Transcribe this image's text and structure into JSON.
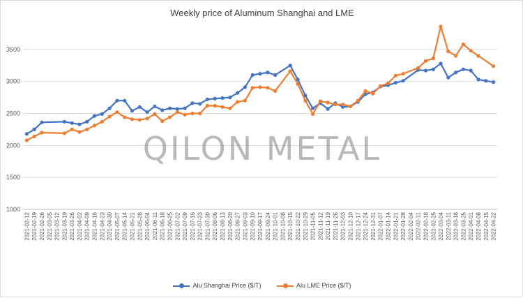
{
  "title": "Weekly price of Aluminum Shanghai and LME",
  "watermark": "QILON METAL",
  "colors": {
    "shanghai": "#4472c4",
    "lme": "#ed7d31",
    "grid": "#d9d9d9",
    "axis_text": "#595959"
  },
  "legend": [
    {
      "label": "Alu Shanghai Price ($/T)",
      "color": "#4472c4"
    },
    {
      "label": "Alu LME Price ($/T)",
      "color": "#ed7d31"
    }
  ],
  "chart_data": {
    "type": "line",
    "title": "Weekly price of Aluminum Shanghai and LME",
    "xlabel": "",
    "ylabel": "",
    "ylim": [
      1000,
      4000
    ],
    "yticks": [
      1000,
      1500,
      2000,
      2500,
      3000,
      3500
    ],
    "grid": "horizontal",
    "legend_position": "bottom",
    "categories": [
      "2021-02-12",
      "2021-02-19",
      "2021-02-26",
      "2021-03-05",
      "2021-03-12",
      "2021-03-19",
      "2021-03-26",
      "2021-04-02",
      "2021-04-09",
      "2021-04-16",
      "2021-04-23",
      "2021-04-30",
      "2021-05-07",
      "2021-05-14",
      "2021-05-21",
      "2021-05-28",
      "2021-06-04",
      "2021-06-11",
      "2021-06-18",
      "2021-06-25",
      "2021-07-02",
      "2021-07-09",
      "2021-07-16",
      "2021-07-23",
      "2021-07-30",
      "2021-08-06",
      "2021-08-13",
      "2021-08-20",
      "2021-08-27",
      "2021-09-03",
      "2021-09-10",
      "2021-09-17",
      "2021-09-24",
      "2021-10-01",
      "2021-10-08",
      "2021-10-15",
      "2021-10-22",
      "2021-10-29",
      "2021-11-05",
      "2021-11-12",
      "2021-11-19",
      "2021-11-26",
      "2021-12-03",
      "2021-12-10",
      "2021-12-17",
      "2021-12-24",
      "2021-12-31",
      "2022-01-07",
      "2022-01-14",
      "2022-01-21",
      "2022-01-28",
      "2022-02-04",
      "2022-02-11",
      "2022-02-18",
      "2022-02-25",
      "2022-03-04",
      "2022-03-11",
      "2022-03-18",
      "2022-03-25",
      "2022-04-01",
      "2022-04-08",
      "2022-04-15",
      "2022-04-22"
    ],
    "series": [
      {
        "name": "Alu Shanghai Price ($/T)",
        "values": [
          2180,
          2250,
          2360,
          null,
          null,
          2370,
          2350,
          2330,
          2370,
          2460,
          2490,
          2580,
          2700,
          2700,
          2540,
          2600,
          2520,
          2610,
          2550,
          2580,
          2570,
          2580,
          2660,
          2650,
          2720,
          2730,
          2740,
          2750,
          2820,
          2910,
          3100,
          3120,
          3140,
          3100,
          null,
          3250,
          3030,
          2780,
          2580,
          2660,
          2570,
          2660,
          2600,
          2610,
          2680,
          2800,
          2830,
          2920,
          2940,
          2980,
          3010,
          null,
          3180,
          3170,
          3190,
          3280,
          3060,
          3140,
          3190,
          3170,
          3030,
          3010,
          2990
        ]
      },
      {
        "name": "Alu LME Price ($/T)",
        "values": [
          2080,
          2140,
          2200,
          null,
          null,
          2190,
          2250,
          2210,
          2250,
          2310,
          2370,
          2450,
          2520,
          2440,
          2410,
          2400,
          2420,
          2490,
          2380,
          2440,
          2520,
          2480,
          2500,
          2500,
          2620,
          2620,
          2600,
          2580,
          2680,
          2700,
          2900,
          2910,
          2900,
          2850,
          null,
          3160,
          2960,
          2700,
          2490,
          2690,
          2670,
          2640,
          2640,
          2610,
          2700,
          2850,
          2810,
          2930,
          2970,
          3090,
          3120,
          null,
          3210,
          3320,
          3360,
          3860,
          3470,
          3400,
          3580,
          3480,
          3400,
          null,
          3240
        ]
      }
    ]
  }
}
